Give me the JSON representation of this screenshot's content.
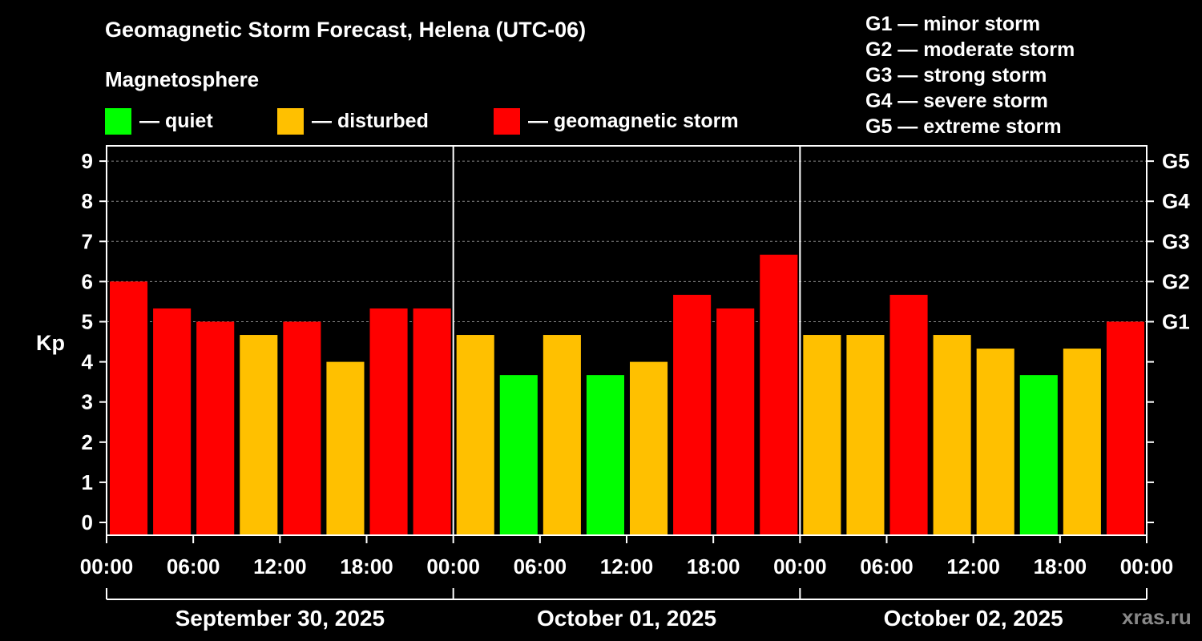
{
  "header": {
    "title": "Geomagnetic Storm Forecast, Helena (UTC-06)",
    "subtitle": "Magnetosphere"
  },
  "legend": [
    {
      "label": "— quiet",
      "color": "#00ff00"
    },
    {
      "label": "— disturbed",
      "color": "#ffc000"
    },
    {
      "label": "— geomagnetic storm",
      "color": "#ff0000"
    }
  ],
  "gscale": [
    "G1 — minor storm",
    "G2 — moderate storm",
    "G3 — strong storm",
    "G4 — severe storm",
    "G5 — extreme storm"
  ],
  "watermark": "xras.ru",
  "chart_data": {
    "type": "bar",
    "title": "Geomagnetic Storm Forecast, Helena (UTC-06)",
    "ylabel": "Kp",
    "ylim": [
      0,
      9
    ],
    "y_ticks": [
      "0",
      "1",
      "2",
      "3",
      "4",
      "5",
      "6",
      "7",
      "8",
      "9"
    ],
    "g_levels": [
      {
        "kp": 5,
        "label": "G1"
      },
      {
        "kp": 6,
        "label": "G2"
      },
      {
        "kp": 7,
        "label": "G3"
      },
      {
        "kp": 8,
        "label": "G4"
      },
      {
        "kp": 9,
        "label": "G5"
      }
    ],
    "x_tick_labels": [
      "00:00",
      "06:00",
      "12:00",
      "18:00",
      "00:00",
      "06:00",
      "12:00",
      "18:00",
      "00:00",
      "06:00",
      "12:00",
      "18:00",
      "00:00"
    ],
    "days": [
      "September 30, 2025",
      "October 01, 2025",
      "October 02, 2025"
    ],
    "colors": {
      "quiet": "#00ff00",
      "disturbed": "#ffc000",
      "storm": "#ff0000"
    },
    "values": [
      6.0,
      5.33,
      5.0,
      4.67,
      5.0,
      4.0,
      5.33,
      5.33,
      4.67,
      3.67,
      4.67,
      3.67,
      4.0,
      5.67,
      5.33,
      6.67,
      4.67,
      4.67,
      5.67,
      4.67,
      4.33,
      3.67,
      4.33,
      5.0
    ],
    "status": [
      "storm",
      "storm",
      "storm",
      "disturbed",
      "storm",
      "disturbed",
      "storm",
      "storm",
      "disturbed",
      "quiet",
      "disturbed",
      "quiet",
      "disturbed",
      "storm",
      "storm",
      "storm",
      "disturbed",
      "disturbed",
      "storm",
      "disturbed",
      "disturbed",
      "quiet",
      "disturbed",
      "storm"
    ]
  }
}
